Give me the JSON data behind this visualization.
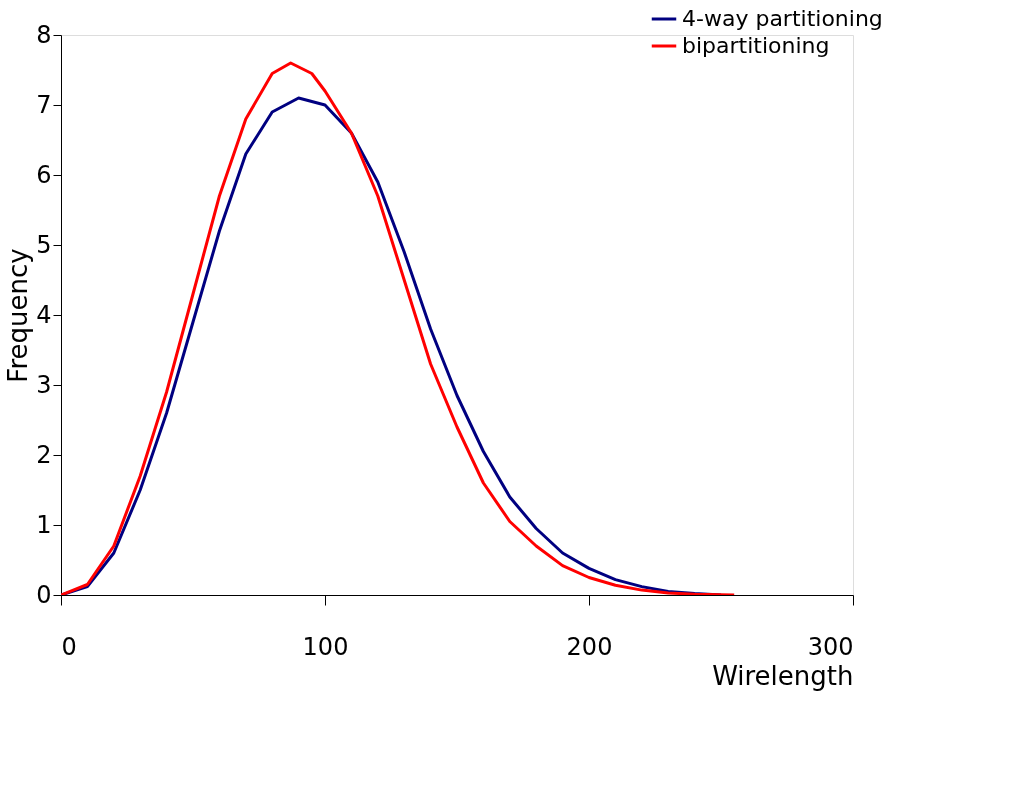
{
  "chart_data": {
    "type": "line",
    "xlabel": "Wirelength",
    "ylabel": "Frequency",
    "xlim": [
      0,
      300
    ],
    "xticks": [
      0,
      100,
      200,
      300
    ],
    "ylim": [
      0,
      8
    ],
    "yticks": [
      0,
      1,
      2,
      3,
      4,
      5,
      6,
      7,
      8
    ],
    "grid": false,
    "legend": "top right",
    "marker": "none",
    "line_style": "solid",
    "series": [
      {
        "name": "4-way partitioning",
        "color": "#000080",
        "x": [
          0,
          10,
          20,
          30,
          40,
          50,
          60,
          70,
          80,
          90,
          100,
          110,
          120,
          130,
          140,
          150,
          160,
          170,
          180,
          190,
          200,
          210,
          220,
          230,
          240,
          250
        ],
        "values": [
          0,
          0.12,
          0.6,
          1.5,
          2.6,
          3.9,
          5.2,
          6.3,
          6.9,
          7.1,
          7.0,
          6.6,
          5.9,
          4.9,
          3.8,
          2.85,
          2.05,
          1.4,
          0.95,
          0.6,
          0.38,
          0.22,
          0.12,
          0.05,
          0.02,
          0
        ]
      },
      {
        "name": "bipartitioning",
        "color": "#ff0000",
        "x": [
          0,
          10,
          20,
          30,
          40,
          50,
          60,
          70,
          80,
          87,
          95,
          100,
          110,
          120,
          130,
          140,
          150,
          160,
          170,
          180,
          190,
          200,
          210,
          220,
          230,
          240,
          255
        ],
        "values": [
          0,
          0.15,
          0.7,
          1.7,
          2.9,
          4.3,
          5.7,
          6.8,
          7.45,
          7.6,
          7.45,
          7.2,
          6.6,
          5.7,
          4.5,
          3.3,
          2.4,
          1.6,
          1.05,
          0.7,
          0.42,
          0.25,
          0.14,
          0.07,
          0.03,
          0.01,
          0
        ]
      }
    ]
  }
}
